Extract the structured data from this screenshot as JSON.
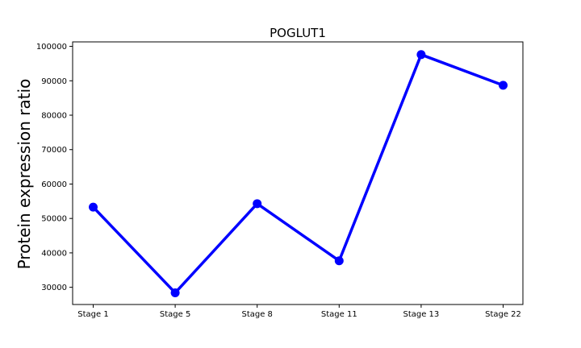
{
  "chart_data": {
    "type": "line",
    "title": "POGLUT1",
    "xlabel": "",
    "ylabel": "Protein expression ratio",
    "categories": [
      "Stage 1",
      "Stage 5",
      "Stage 8",
      "Stage 11",
      "Stage 13",
      "Stage 22"
    ],
    "series": [
      {
        "name": "POGLUT1",
        "values": [
          53300,
          28400,
          54300,
          37700,
          97600,
          88700
        ]
      }
    ],
    "ylim": [
      25000,
      101300
    ],
    "yticks": [
      30000,
      40000,
      50000,
      60000,
      70000,
      80000,
      90000,
      100000
    ],
    "ytick_labels": [
      "30000",
      "40000",
      "50000",
      "60000",
      "70000",
      "80000",
      "90000",
      "100000"
    ],
    "grid": false,
    "color": "#0000ff"
  }
}
